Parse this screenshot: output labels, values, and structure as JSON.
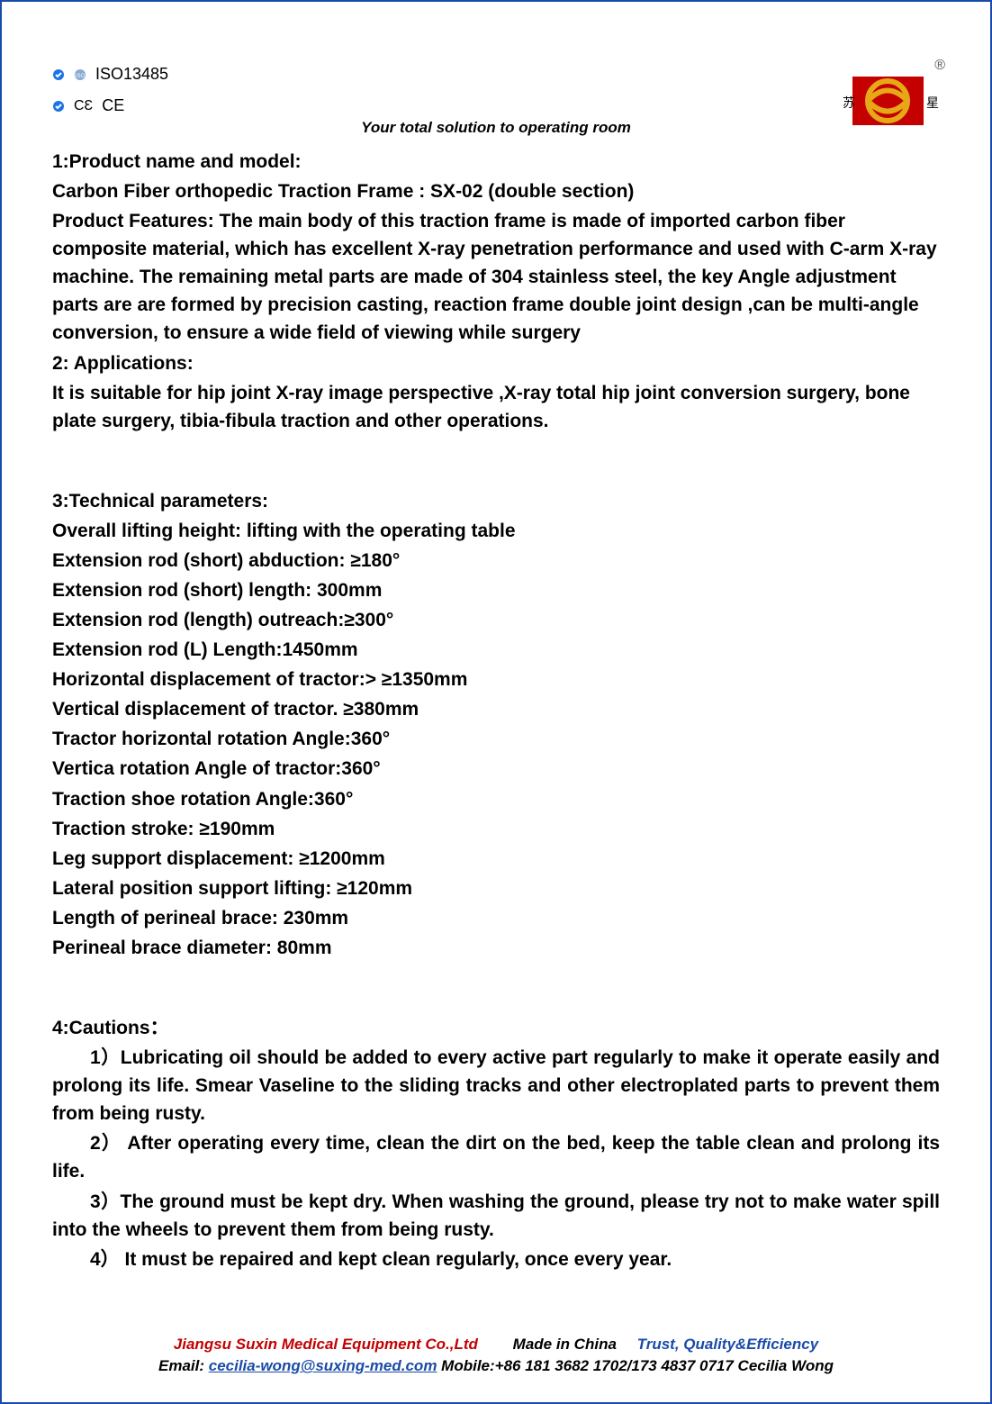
{
  "certifications": {
    "iso_label": "ISO13485",
    "ce_label": "CE",
    "ce_mark": "CƐ"
  },
  "tagline": "Your total solution to operating room",
  "reg_mark": "®",
  "sections": {
    "s1_heading": "1:Product name and model:",
    "s1_line1": "Carbon Fiber orthopedic Traction Frame    : SX-02 (double section)",
    "s1_features": "Product Features: The main body of this traction frame is made of imported carbon fiber composite material, which has excellent X-ray penetration performance and used with C-arm X-ray machine. The remaining metal parts are made of 304 stainless steel, the key Angle adjustment parts are are formed by precision casting, reaction frame double joint design ,can be multi-angle conversion, to ensure a wide field of viewing while surgery",
    "s2_heading": "2: Applications:",
    "s2_text": "It is suitable for hip joint X-ray image perspective ,X-ray total hip joint conversion surgery, bone plate surgery, tibia-fibula traction and other operations.",
    "s3_heading": "3:Technical parameters:",
    "params": [
      "Overall lifting height: lifting with the operating table",
      "Extension rod (short) abduction: ≥180°",
      "Extension rod (short) length: 300mm",
      "Extension rod (length) outreach:≥300°",
      "Extension rod (L) Length:1450mm",
      "Horizontal displacement of tractor:> ≥1350mm",
      "Vertical displacement of tractor. ≥380mm",
      "Tractor horizontal rotation Angle:360°",
      "Vertica    rotation Angle of tractor:360°",
      "Traction shoe rotation Angle:360°",
      "Traction stroke: ≥190mm",
      "Leg support displacement: ≥1200mm",
      "Lateral position support lifting: ≥120mm",
      "Length of perineal brace: 230mm",
      "Perineal brace diameter: 80mm"
    ],
    "s4_heading": "4:Cautions：",
    "cautions": [
      "1）Lubricating oil should be added to every active part regularly to make it operate easily and prolong its life. Smear Vaseline to the sliding tracks and other electroplated parts to prevent them from being rusty.",
      "2） After operating every time, clean the dirt on the bed, keep the table clean and prolong its life.",
      "3）The ground must be kept dry. When washing the ground, please try not to make water spill into the wheels to prevent them from being rusty.",
      "4） It must be repaired and kept clean regularly, once every year."
    ]
  },
  "footer": {
    "company": "Jiangsu Suxin Medical Equipment Co.,Ltd",
    "made": "Made in China",
    "trust": "Trust, Quality&Efficiency",
    "email_label": "Email: ",
    "email": "cecilia-wong@suxing-med.com",
    "mobile": " Mobile:+86 181 3682 1702/173 4837 0717    Cecilia Wong"
  },
  "logo_colors": {
    "red": "#c40000",
    "gold": "#e6a817",
    "blue": "#1a4ba8"
  }
}
